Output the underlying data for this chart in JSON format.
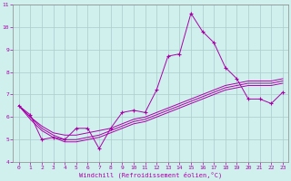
{
  "xlabel": "Windchill (Refroidissement éolien,°C)",
  "background_color": "#cff0ec",
  "line_color": "#aa00aa",
  "grid_color": "#aacccc",
  "x_data": [
    0,
    1,
    2,
    3,
    4,
    5,
    6,
    7,
    8,
    9,
    10,
    11,
    12,
    13,
    14,
    15,
    16,
    17,
    18,
    19,
    20,
    21,
    22,
    23
  ],
  "y_main": [
    6.5,
    6.1,
    5.0,
    5.1,
    5.0,
    5.5,
    5.5,
    4.6,
    5.5,
    6.2,
    6.3,
    6.2,
    7.2,
    8.7,
    8.8,
    10.6,
    9.8,
    9.3,
    8.2,
    7.7,
    6.8,
    6.8,
    6.6,
    7.1
  ],
  "y_trend1": [
    6.5,
    6.0,
    5.6,
    5.3,
    5.2,
    5.2,
    5.3,
    5.4,
    5.5,
    5.7,
    5.9,
    6.0,
    6.2,
    6.4,
    6.6,
    6.8,
    7.0,
    7.2,
    7.4,
    7.5,
    7.6,
    7.6,
    7.6,
    7.7
  ],
  "y_trend2": [
    6.5,
    6.0,
    5.5,
    5.2,
    5.0,
    5.0,
    5.1,
    5.2,
    5.4,
    5.6,
    5.8,
    5.9,
    6.1,
    6.3,
    6.5,
    6.7,
    6.9,
    7.1,
    7.3,
    7.4,
    7.5,
    7.5,
    7.5,
    7.6
  ],
  "y_trend3": [
    6.5,
    5.9,
    5.4,
    5.1,
    4.9,
    4.9,
    5.0,
    5.1,
    5.3,
    5.5,
    5.7,
    5.8,
    6.0,
    6.2,
    6.4,
    6.6,
    6.8,
    7.0,
    7.2,
    7.3,
    7.4,
    7.4,
    7.4,
    7.5
  ],
  "ylim": [
    4,
    11
  ],
  "xlim": [
    -0.5,
    23.5
  ],
  "yticks": [
    4,
    5,
    6,
    7,
    8,
    9,
    10,
    11
  ],
  "xticks": [
    0,
    1,
    2,
    3,
    4,
    5,
    6,
    7,
    8,
    9,
    10,
    11,
    12,
    13,
    14,
    15,
    16,
    17,
    18,
    19,
    20,
    21,
    22,
    23
  ]
}
